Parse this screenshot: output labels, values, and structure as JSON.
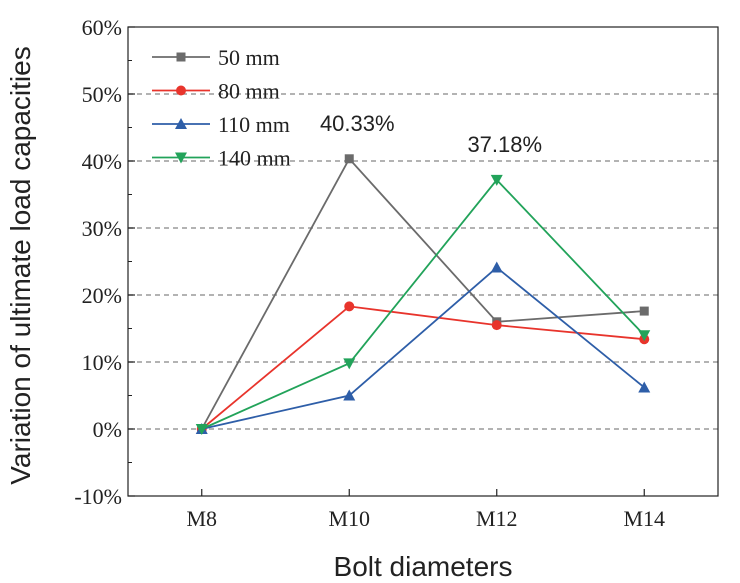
{
  "chart_data": {
    "type": "line",
    "xlabel": "Bolt diameters",
    "ylabel": "Variation of ultimate load capacities",
    "categories": [
      "M8",
      "M10",
      "M12",
      "M14"
    ],
    "ylim": [
      -10,
      60
    ],
    "yticks": [
      "-10%",
      "0%",
      "10%",
      "20%",
      "30%",
      "40%",
      "50%",
      "60%"
    ],
    "grid": "horizontal dashed",
    "legend_position": "top-left",
    "series": [
      {
        "name": "50 mm",
        "color": "#6b6b6b",
        "marker": "square",
        "values": [
          0,
          40.33,
          16.0,
          17.6
        ]
      },
      {
        "name": "80 mm",
        "color": "#e8342c",
        "marker": "circle",
        "values": [
          0,
          18.3,
          15.5,
          13.4
        ]
      },
      {
        "name": "110 mm",
        "color": "#2e5ea8",
        "marker": "triangle-up",
        "values": [
          0,
          5.0,
          24.1,
          6.2
        ]
      },
      {
        "name": "140 mm",
        "color": "#22a35a",
        "marker": "triangle-down",
        "values": [
          0,
          9.8,
          37.18,
          14.0
        ]
      }
    ],
    "annotations": [
      {
        "text": "40.33%",
        "series": 0,
        "category": "M10"
      },
      {
        "text": "37.18%",
        "series": 3,
        "category": "M12"
      }
    ]
  }
}
